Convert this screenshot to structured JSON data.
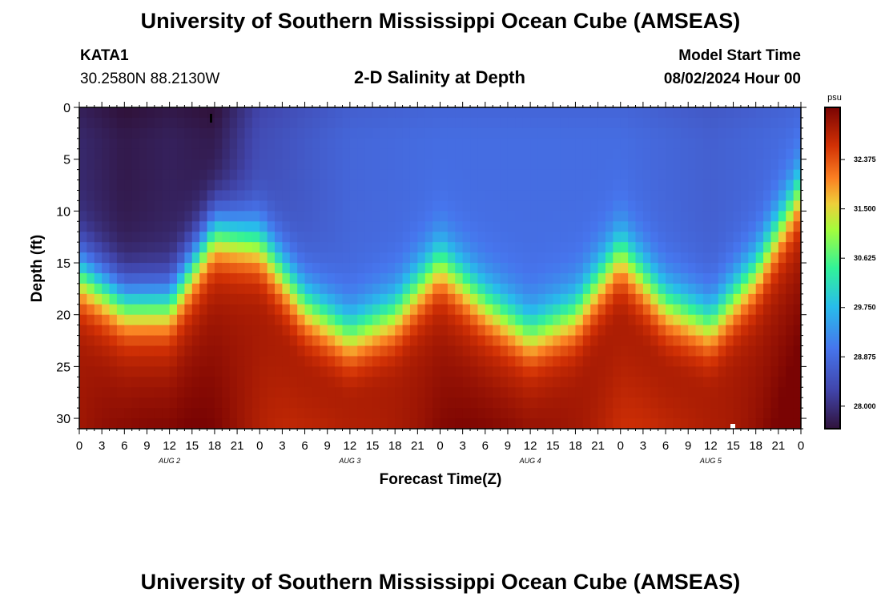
{
  "header": {
    "title": "University of Southern Mississippi Ocean Cube (AMSEAS)",
    "station": "KATA1",
    "coords": "30.2580N  88.2130W",
    "model_start_label": "Model Start Time",
    "model_start_value": "08/02/2024 Hour 00",
    "footer_title": "University of Southern Mississippi Ocean Cube (AMSEAS)"
  },
  "chart_data": {
    "type": "heatmap",
    "title": "2-D Salinity at Depth",
    "xlabel": "Forecast Time(Z)",
    "ylabel": "Depth (ft)",
    "x_range_hours": [
      0,
      96
    ],
    "ylim": [
      0,
      31
    ],
    "x_tick_labels": [
      "0",
      "3",
      "6",
      "9",
      "12",
      "15",
      "18",
      "21",
      "0",
      "3",
      "6",
      "9",
      "12",
      "15",
      "18",
      "21",
      "0",
      "3",
      "6",
      "9",
      "12",
      "15",
      "18",
      "21",
      "0",
      "3",
      "6",
      "9",
      "12",
      "15",
      "18",
      "21",
      "0"
    ],
    "day_labels": [
      "AUG 2",
      "AUG 3",
      "AUG 4",
      "AUG 5"
    ],
    "y_ticks": [
      0,
      5,
      10,
      15,
      20,
      25,
      30
    ],
    "colorbar": {
      "unit": "psu",
      "range": [
        27.6,
        33.3
      ],
      "tick_values": [
        28.0,
        28.875,
        29.75,
        30.625,
        31.5,
        32.375
      ],
      "tick_labels": [
        "28.000",
        "28.875",
        "29.750",
        "30.625",
        "31.500",
        "32.375"
      ]
    },
    "halocline_depth_ft": {
      "time_hours": [
        0,
        6,
        12,
        18,
        24,
        30,
        36,
        42,
        48,
        54,
        60,
        66,
        72,
        78,
        84,
        90,
        96
      ],
      "depth": [
        16,
        19,
        19,
        12,
        13,
        19,
        22,
        20,
        15,
        19,
        22,
        20,
        14,
        19,
        21,
        16,
        8
      ]
    },
    "surface_salinity_psu": {
      "time_hours": [
        0,
        6,
        12,
        18,
        24,
        30,
        36,
        48,
        60,
        72,
        84,
        96
      ],
      "value": [
        27.9,
        27.7,
        27.8,
        27.7,
        28.4,
        28.6,
        28.8,
        28.9,
        28.9,
        28.9,
        28.7,
        28.9
      ]
    },
    "bottom_salinity_psu": 33.0
  }
}
